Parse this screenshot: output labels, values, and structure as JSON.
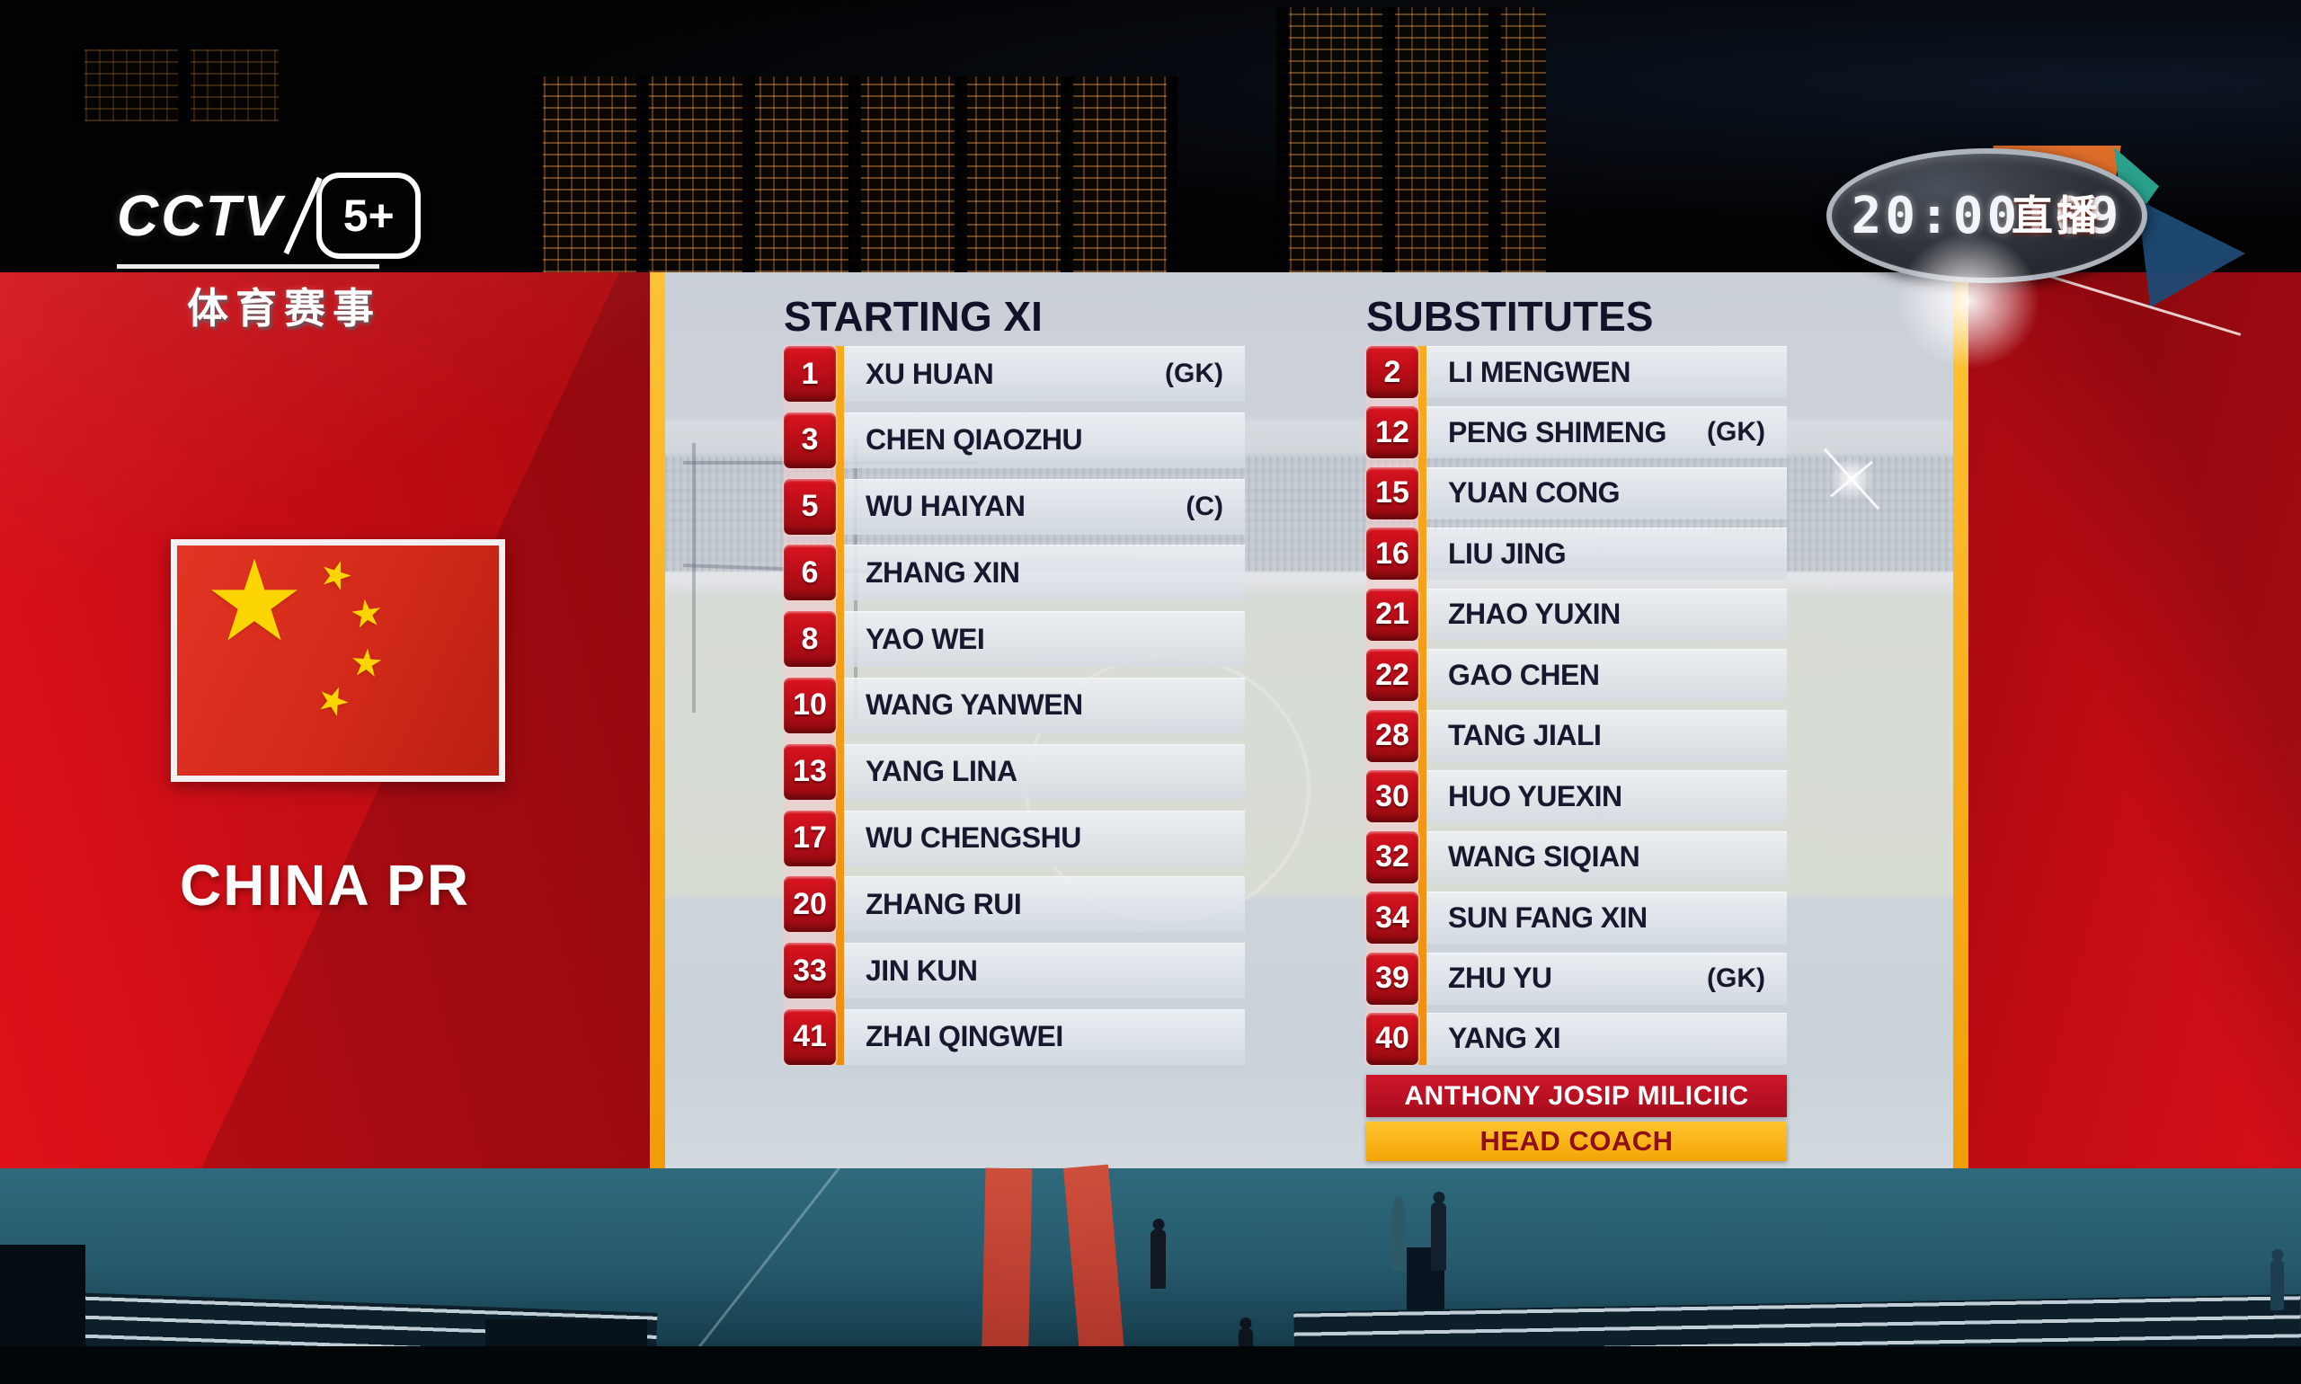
{
  "broadcaster": {
    "name": "CCTV",
    "channel": "5+",
    "tagline": "体育赛事"
  },
  "clock": {
    "time": "20:00:09",
    "live_label": "直播"
  },
  "team": {
    "name": "CHINA PR",
    "flag": "china-flag"
  },
  "lineup": {
    "starting": {
      "title": "STARTING XI",
      "players": [
        {
          "number": "1",
          "name": "XU HUAN",
          "role": "(GK)"
        },
        {
          "number": "3",
          "name": "CHEN QIAOZHU",
          "role": ""
        },
        {
          "number": "5",
          "name": "WU HAIYAN",
          "role": "(C)"
        },
        {
          "number": "6",
          "name": "ZHANG XIN",
          "role": ""
        },
        {
          "number": "8",
          "name": "YAO WEI",
          "role": ""
        },
        {
          "number": "10",
          "name": "WANG YANWEN",
          "role": ""
        },
        {
          "number": "13",
          "name": "YANG LINA",
          "role": ""
        },
        {
          "number": "17",
          "name": "WU CHENGSHU",
          "role": ""
        },
        {
          "number": "20",
          "name": "ZHANG RUI",
          "role": ""
        },
        {
          "number": "33",
          "name": "JIN KUN",
          "role": ""
        },
        {
          "number": "41",
          "name": "ZHAI QINGWEI",
          "role": ""
        }
      ]
    },
    "substitutes": {
      "title": "SUBSTITUTES",
      "players": [
        {
          "number": "2",
          "name": "LI MENGWEN",
          "role": ""
        },
        {
          "number": "12",
          "name": "PENG SHIMENG",
          "role": "(GK)"
        },
        {
          "number": "15",
          "name": "YUAN CONG",
          "role": ""
        },
        {
          "number": "16",
          "name": "LIU JING",
          "role": ""
        },
        {
          "number": "21",
          "name": "ZHAO YUXIN",
          "role": ""
        },
        {
          "number": "22",
          "name": "GAO CHEN",
          "role": ""
        },
        {
          "number": "28",
          "name": "TANG JIALI",
          "role": ""
        },
        {
          "number": "30",
          "name": "HUO YUEXIN",
          "role": ""
        },
        {
          "number": "32",
          "name": "WANG SIQIAN",
          "role": ""
        },
        {
          "number": "34",
          "name": "SUN FANG XIN",
          "role": ""
        },
        {
          "number": "39",
          "name": "ZHU YU",
          "role": "(GK)"
        },
        {
          "number": "40",
          "name": "YANG XI",
          "role": ""
        }
      ]
    },
    "coach": {
      "name": "ANTHONY JOSIP MILICIIC",
      "role": "HEAD COACH"
    }
  },
  "colors": {
    "panel_red": "#c60d15",
    "accent_yellow": "#f7a90d",
    "badge_red": "#b60d17",
    "row_bg": "#dde2e9",
    "text_navy": "#16182e",
    "coach_bar_red": "#b51020",
    "coach_bar_gold": "#f9b61a",
    "live_badge_red": "#cb4440",
    "floor_teal": "#26596c"
  }
}
